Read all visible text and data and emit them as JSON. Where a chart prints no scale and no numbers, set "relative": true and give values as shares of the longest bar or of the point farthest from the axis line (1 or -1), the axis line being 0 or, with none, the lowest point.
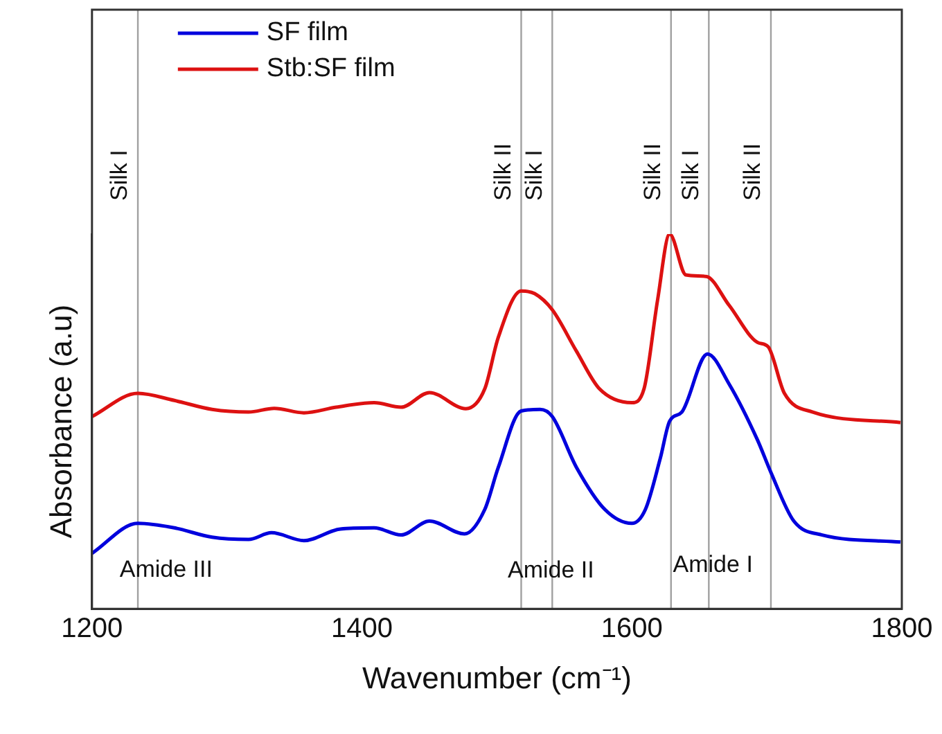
{
  "chart_data": {
    "type": "line",
    "xlabel": "Wavenumber (cm⁻¹)",
    "ylabel": "Absorbance (a.u)",
    "relative": true,
    "xlim": [
      1200,
      1800
    ],
    "xticks": [
      1200,
      1400,
      1600,
      1800
    ],
    "grid": false,
    "legend": "top left",
    "marker": "none",
    "line_style": "solid",
    "series": [
      {
        "name": "SF film",
        "color": "#0000dd",
        "x": [
          1200,
          1234,
          1261,
          1289,
          1316,
          1333,
          1357,
          1384,
          1409,
          1429,
          1450,
          1476,
          1491,
          1501,
          1518,
          1532,
          1541,
          1559,
          1580,
          1600,
          1610,
          1621,
          1628,
          1637,
          1656,
          1672,
          1693,
          1703,
          1720,
          1741,
          1799
        ],
        "values": [
          0.148,
          0.228,
          0.216,
          0.191,
          0.185,
          0.203,
          0.182,
          0.213,
          0.216,
          0.197,
          0.234,
          0.2,
          0.265,
          0.377,
          0.528,
          0.532,
          0.513,
          0.377,
          0.265,
          0.228,
          0.265,
          0.401,
          0.501,
          0.525,
          0.68,
          0.6,
          0.451,
          0.364,
          0.234,
          0.197,
          0.178
        ]
      },
      {
        "name": "Stb:SF film",
        "color": "#dd1111",
        "x": [
          1200,
          1234,
          1261,
          1289,
          1316,
          1335,
          1357,
          1381,
          1409,
          1429,
          1450,
          1477,
          1491,
          1501,
          1518,
          1528,
          1541,
          1559,
          1576,
          1600,
          1609,
          1619,
          1628,
          1640,
          1655,
          1672,
          1693,
          1701,
          1713,
          1734,
          1799
        ],
        "values": [
          0.513,
          0.575,
          0.556,
          0.532,
          0.525,
          0.535,
          0.523,
          0.538,
          0.55,
          0.538,
          0.577,
          0.534,
          0.587,
          0.724,
          0.848,
          0.841,
          0.798,
          0.687,
          0.587,
          0.55,
          0.587,
          0.823,
          1,
          0.891,
          0.887,
          0.81,
          0.711,
          0.699,
          0.575,
          0.525,
          0.497
        ]
      }
    ],
    "ref_lines": [
      {
        "axis": "x",
        "value": 1234,
        "label": "Silk I",
        "color": "#a0a0a0"
      },
      {
        "axis": "x",
        "value": 1518,
        "label": "Silk II",
        "color": "#a0a0a0"
      },
      {
        "axis": "x",
        "value": 1541,
        "label": "Silk I",
        "color": "#a0a0a0"
      },
      {
        "axis": "x",
        "value": 1629,
        "label": "Silk II",
        "color": "#a0a0a0"
      },
      {
        "axis": "x",
        "value": 1657,
        "label": "Silk I",
        "color": "#a0a0a0"
      },
      {
        "axis": "x",
        "value": 1703,
        "label": "Silk II",
        "color": "#a0a0a0"
      }
    ],
    "annotations": [
      "Amide III",
      {
        "text": "Amide II",
        "x": 1540,
        "y": 0.1
      },
      {
        "text": "Amide I",
        "x": 1660,
        "y": 0.115
      }
    ]
  }
}
